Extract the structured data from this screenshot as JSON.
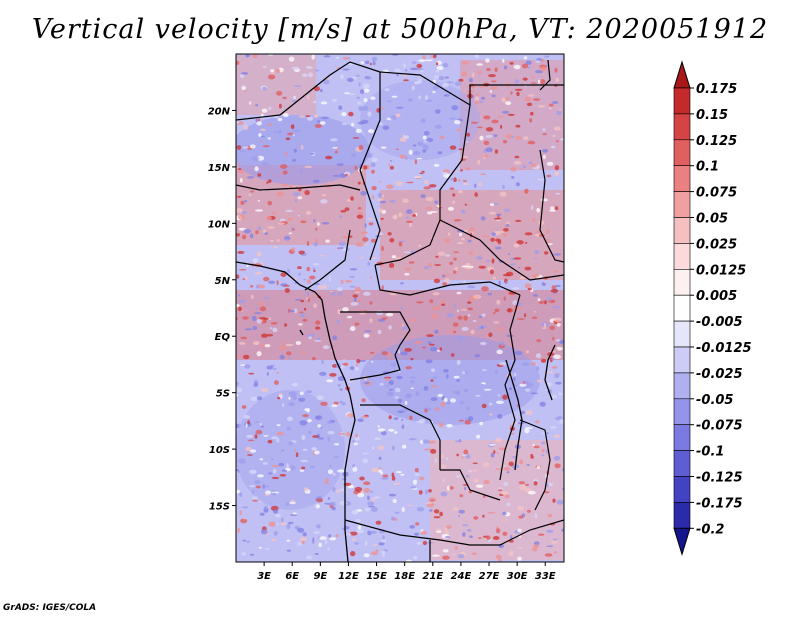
{
  "title": "Vertical velocity [m/s] at 500hPa, VT: 2020051912",
  "footer": "GrADS: IGES/COLA",
  "map": {
    "lat_labels": [
      "20N",
      "15N",
      "10N",
      "5N",
      "EQ",
      "5S",
      "10S",
      "15S"
    ],
    "lat_values": [
      20,
      15,
      10,
      5,
      0,
      -5,
      -10,
      -15
    ],
    "lon_labels": [
      "3E",
      "6E",
      "9E",
      "12E",
      "15E",
      "18E",
      "21E",
      "24E",
      "27E",
      "30E",
      "33E"
    ],
    "lon_values": [
      3,
      6,
      9,
      12,
      15,
      18,
      21,
      24,
      27,
      30,
      33
    ],
    "lon_range": [
      0,
      35
    ],
    "lat_range": [
      -20,
      25
    ]
  },
  "colorbar": {
    "labels": [
      "0.175",
      "0.15",
      "0.125",
      "0.1",
      "0.075",
      "0.05",
      "0.025",
      "0.0125",
      "0.005",
      "-0.005",
      "-0.0125",
      "-0.025",
      "-0.05",
      "-0.075",
      "-0.1",
      "-0.125",
      "-0.175",
      "-0.2"
    ],
    "colors": [
      "#a81818",
      "#c42a2a",
      "#d44444",
      "#e06060",
      "#ea8080",
      "#f0a0a0",
      "#f6c0c0",
      "#fadada",
      "#fdf0f0",
      "#ffffff",
      "#e6e6fa",
      "#ccccf6",
      "#b0b0f0",
      "#9494ea",
      "#7a7ae0",
      "#5e5ed2",
      "#4242c2",
      "#2a2aaa",
      "#14148c"
    ]
  },
  "colors": {
    "background_blue": "#b8b8f2",
    "positive_red": "#e05a5a",
    "border": "#000000"
  }
}
